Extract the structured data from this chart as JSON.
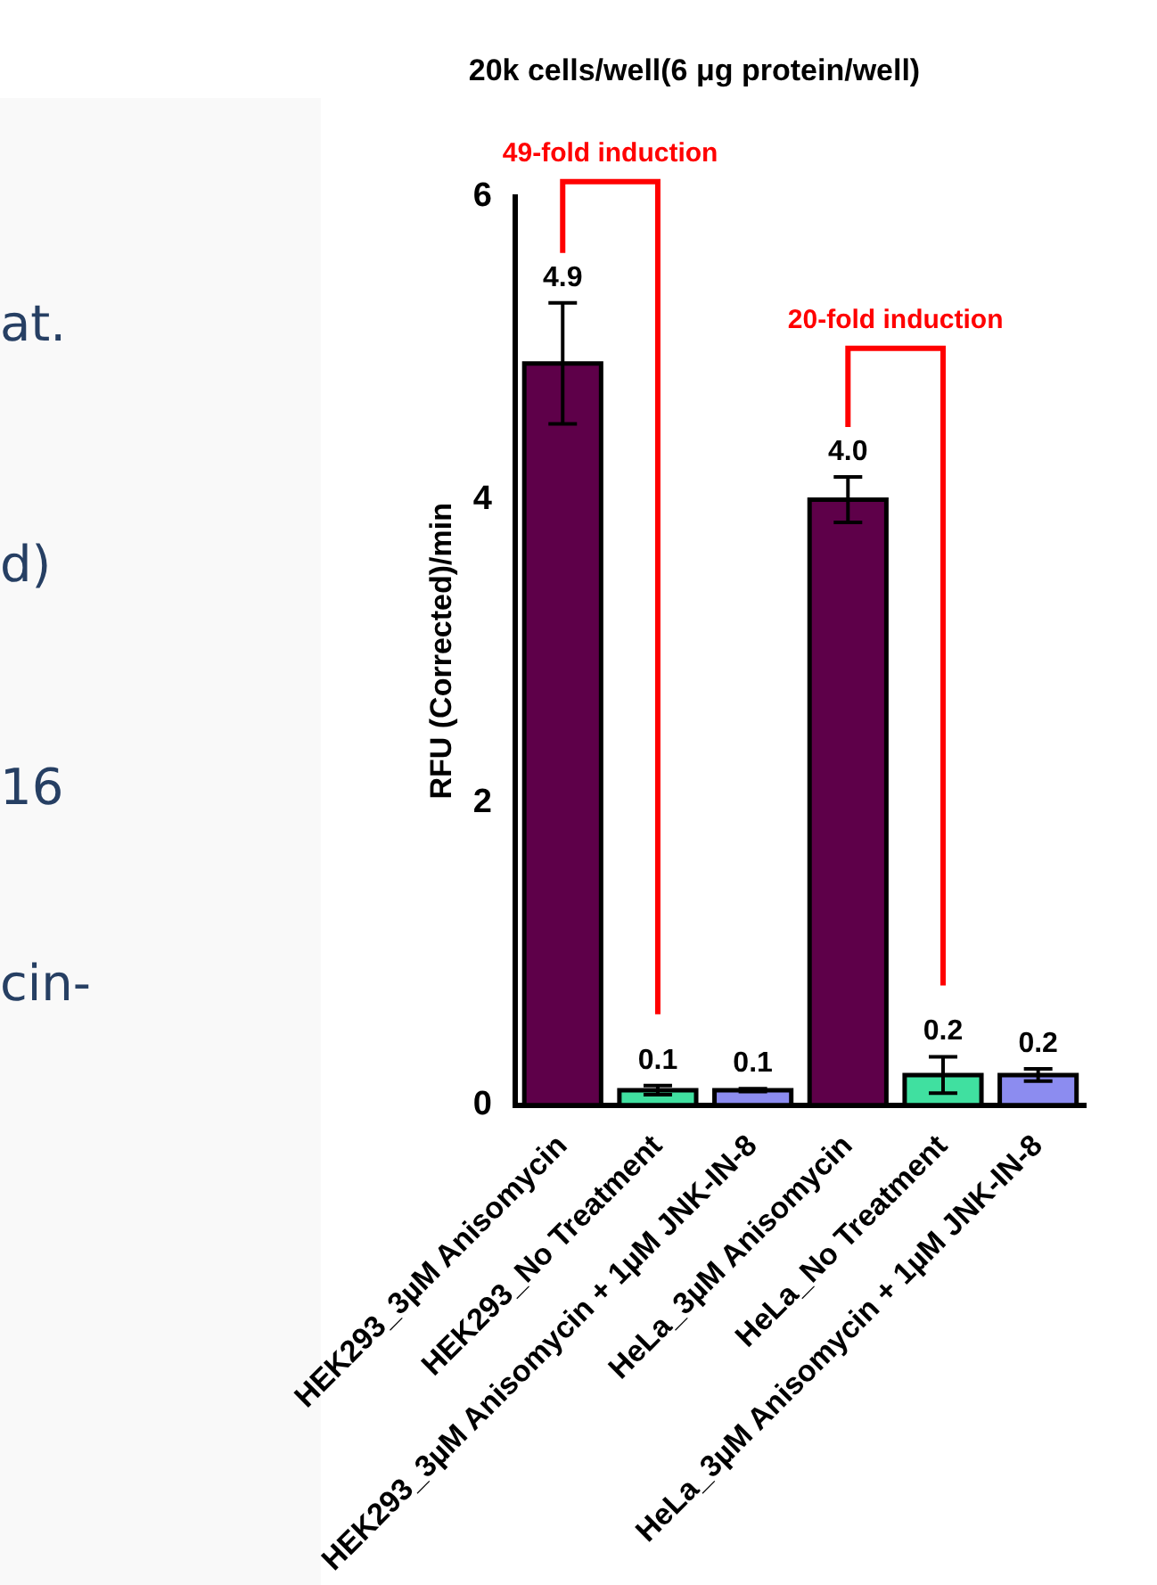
{
  "chart_data": {
    "type": "bar",
    "title": "20k cells/well(6 μg protein/well)",
    "ylabel": "RFU (Corrected)/min",
    "categories": [
      "HEK293_3µM Anisomycin",
      "HEK293_No Treatment",
      "HEK293_3µM Anisomycin + 1µM JNK-IN-8",
      "HeLa_3µM Anisomycin",
      "HeLa_No Treatment",
      "HeLa_3µM Anisomycin + 1µM JNK-IN-8"
    ],
    "values": [
      4.9,
      0.1,
      0.1,
      4.0,
      0.2,
      0.2
    ],
    "errors": [
      0.4,
      0.03,
      0.01,
      0.15,
      0.12,
      0.04
    ],
    "colors": [
      "#5e0049",
      "#40e0a0",
      "#8c8cf0",
      "#5e0049",
      "#40e0a0",
      "#8c8cf0"
    ],
    "ylim": [
      0,
      6
    ],
    "yticks": [
      0,
      2,
      4,
      6
    ],
    "grid": false,
    "legend": false,
    "value_labels": [
      "4.9",
      "0.1",
      "0.1",
      "4.0",
      "0.2",
      "0.2"
    ],
    "annotations": [
      "49-fold induction",
      "20-fold induction",
      "at.",
      "d)",
      "16",
      "cin-"
    ]
  }
}
